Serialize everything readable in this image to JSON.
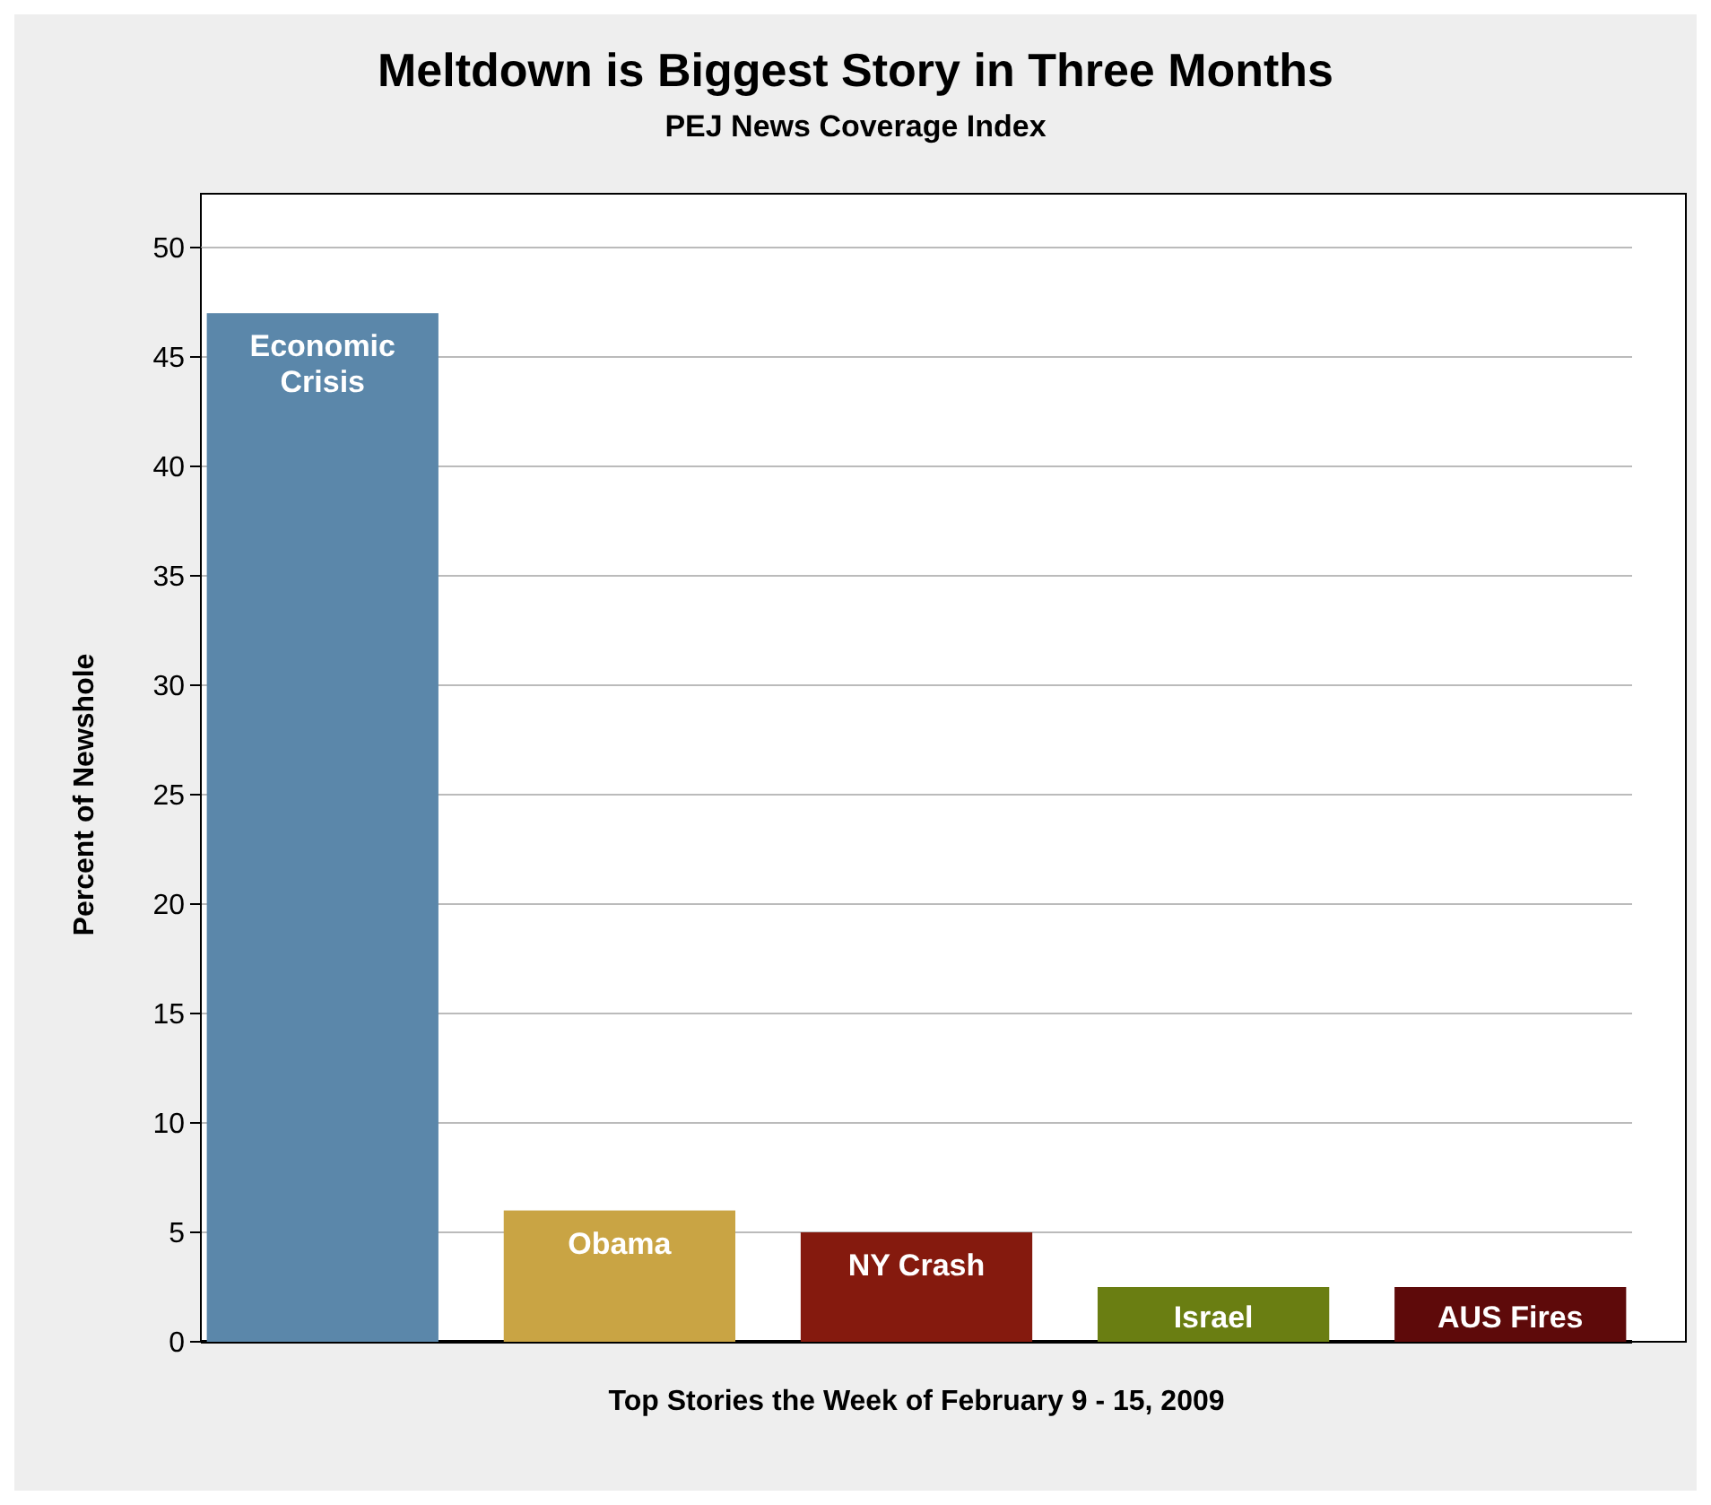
{
  "chart_data": {
    "type": "bar",
    "title": "Meltdown is Biggest Story in Three Months",
    "subtitle": "PEJ News Coverage Index",
    "xlabel": "Top Stories the Week of February 9 - 15, 2009",
    "ylabel": "Percent of Newshole",
    "categories": [
      "Economic Crisis",
      "Obama",
      "NY Crash",
      "Israel",
      "AUS Fires"
    ],
    "values": [
      47,
      6,
      5,
      2.5,
      2.5
    ],
    "colors": [
      "#5b87aa",
      "#c9a444",
      "#851a0e",
      "#6a7e12",
      "#5e0a0a"
    ],
    "ylim": [
      0,
      50
    ],
    "yticks": [
      0,
      5,
      10,
      15,
      20,
      25,
      30,
      35,
      40,
      45,
      50
    ],
    "grid": "y"
  }
}
